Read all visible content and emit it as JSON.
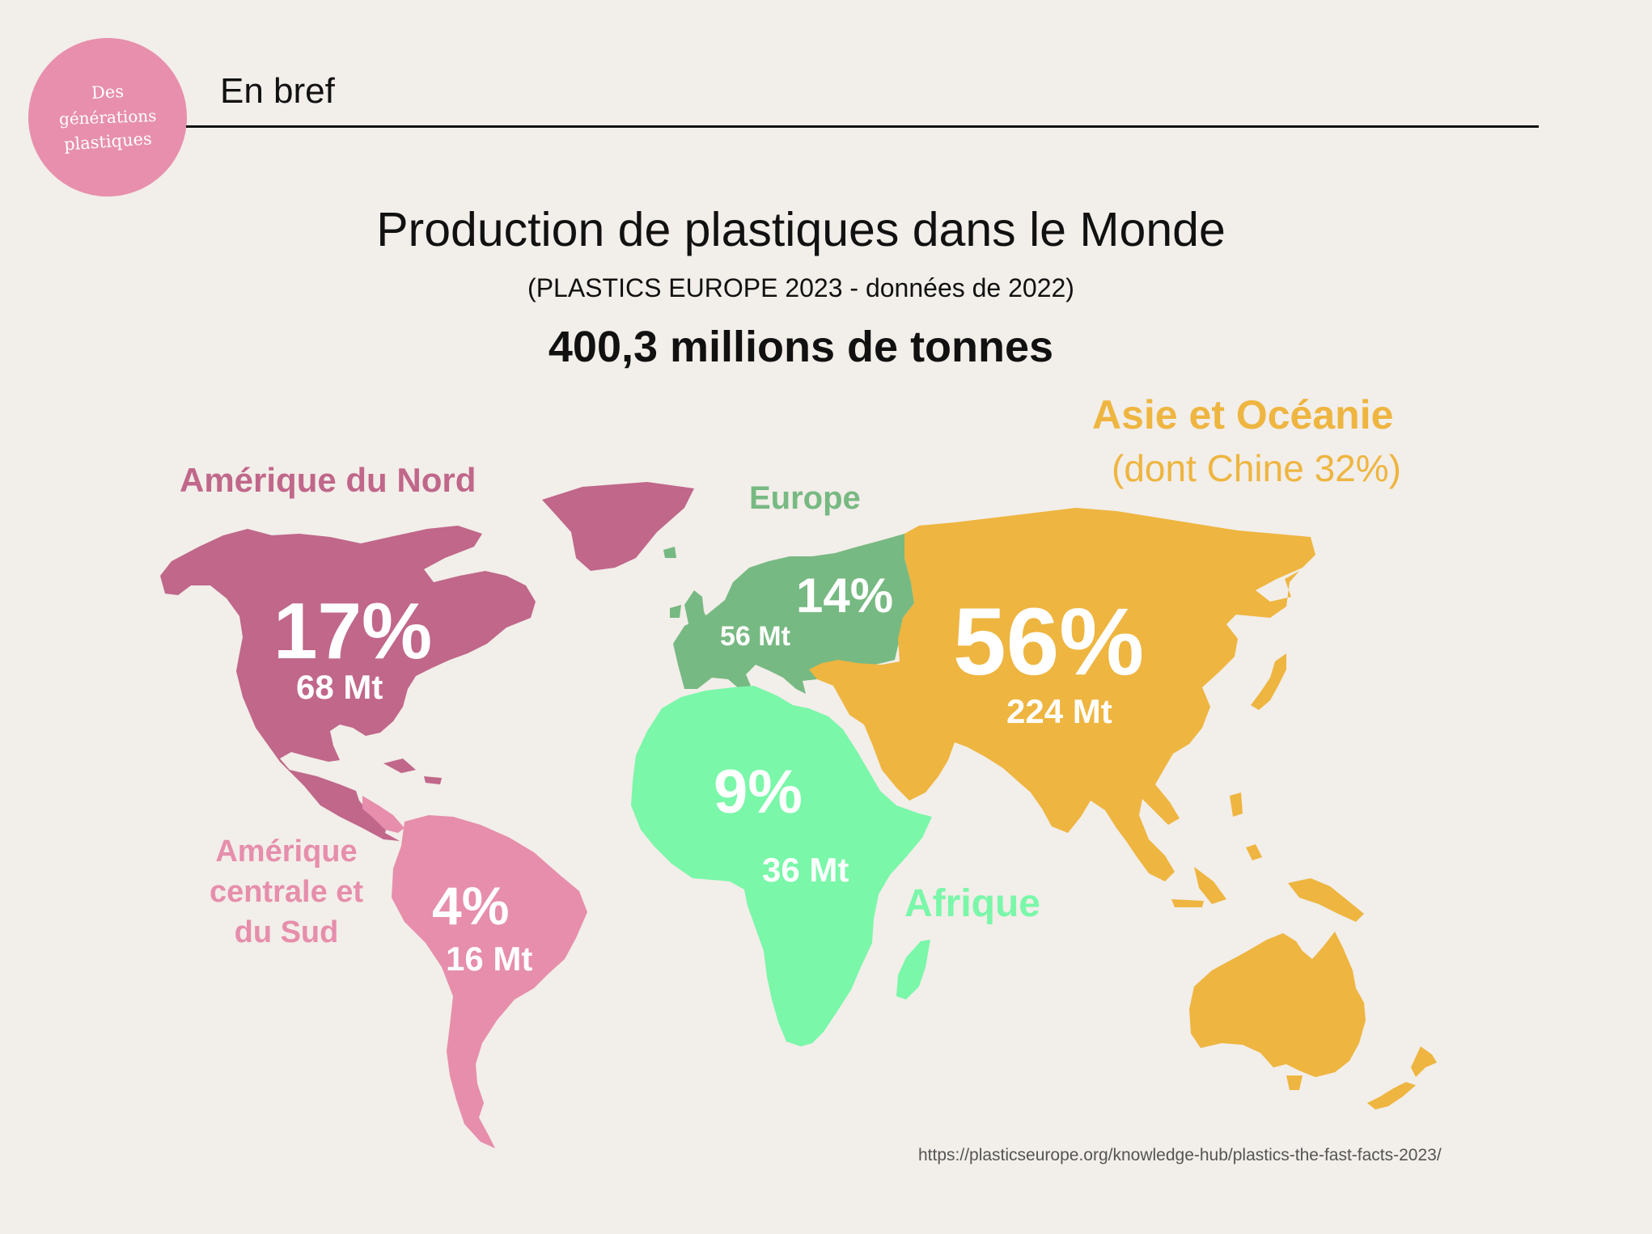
{
  "header": {
    "logo_lines": [
      "Des",
      "générations",
      "plastiques"
    ],
    "section_title": "En bref"
  },
  "title": "Production de plastiques dans le Monde",
  "subtitle": "(PLASTICS EUROPE 2023 - données de 2022)",
  "total": "400,3 millions de tonnes",
  "colors": {
    "north_america": "#c0678a",
    "south_america": "#e68eac",
    "europe": "#77b982",
    "africa": "#7af7a9",
    "asia_oceania": "#eeb540",
    "background": "#f2eee9"
  },
  "regions": [
    {
      "id": "north_america",
      "name": "Amérique du Nord",
      "percent": "17%",
      "tonnage": "68 Mt",
      "share": 17,
      "mt": 68
    },
    {
      "id": "south_america",
      "name": "Amérique centrale et du Sud",
      "name_lines": [
        "Amérique",
        "centrale et",
        "du Sud"
      ],
      "percent": "4%",
      "tonnage": "16 Mt",
      "share": 4,
      "mt": 16
    },
    {
      "id": "europe",
      "name": "Europe",
      "percent": "14%",
      "tonnage": "56 Mt",
      "share": 14,
      "mt": 56
    },
    {
      "id": "africa",
      "name": "Afrique",
      "percent": "9%",
      "tonnage": "36 Mt",
      "share": 9,
      "mt": 36
    },
    {
      "id": "asia_oceania",
      "name": "Asie et Océanie",
      "note": "(dont Chine 32%)",
      "percent": "56%",
      "tonnage": "224 Mt",
      "share": 56,
      "mt": 224
    }
  ],
  "source": "https://plasticseurope.org/knowledge-hub/plastics-the-fast-facts-2023/"
}
